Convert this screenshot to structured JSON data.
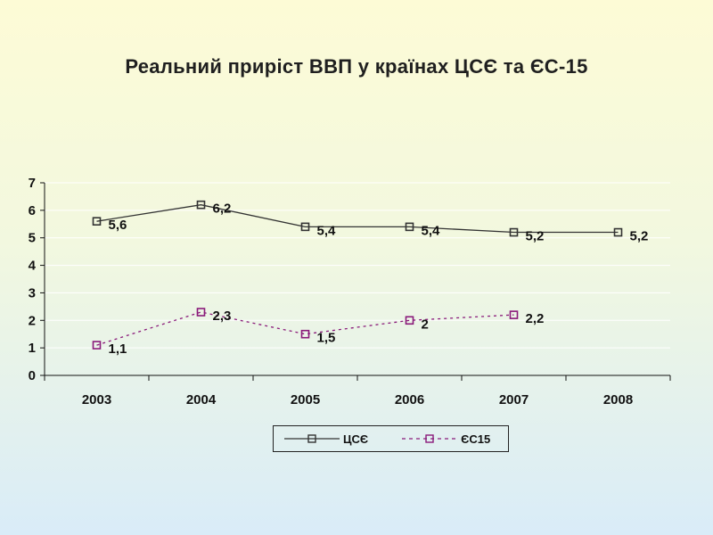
{
  "title": "Реальний приріст ВВП  у країнах ЦСЄ та ЄС-15",
  "colors": {
    "series1": "#333333",
    "series2": "#8a1a7a",
    "background_top": "#fdfbd6",
    "background_bottom": "#d9ecf8"
  },
  "chart_data": {
    "type": "line",
    "title": "Реальний приріст ВВП  у країнах ЦСЄ та ЄС-15",
    "x": [
      "2003",
      "2004",
      "2005",
      "2006",
      "2007",
      "2008"
    ],
    "ylim": [
      0,
      7
    ],
    "yticks": [
      "0",
      "1",
      "2",
      "3",
      "4",
      "5",
      "6",
      "7"
    ],
    "grid": true,
    "legend_position": "bottom",
    "series": [
      {
        "name": "ЦСЄ",
        "values": [
          5.6,
          6.2,
          5.4,
          5.4,
          5.2,
          5.2
        ],
        "labels": [
          "5,6",
          "6,2",
          "5,4",
          "5,4",
          "5,2",
          "5,2"
        ],
        "style": "solid",
        "color": "#333333"
      },
      {
        "name": "ЄС15",
        "values": [
          1.1,
          2.3,
          1.5,
          2,
          2.2,
          null
        ],
        "labels": [
          "1,1",
          "2,3",
          "1,5",
          "2",
          "2,2",
          null
        ],
        "style": "dashed",
        "color": "#8a1a7a"
      }
    ]
  }
}
